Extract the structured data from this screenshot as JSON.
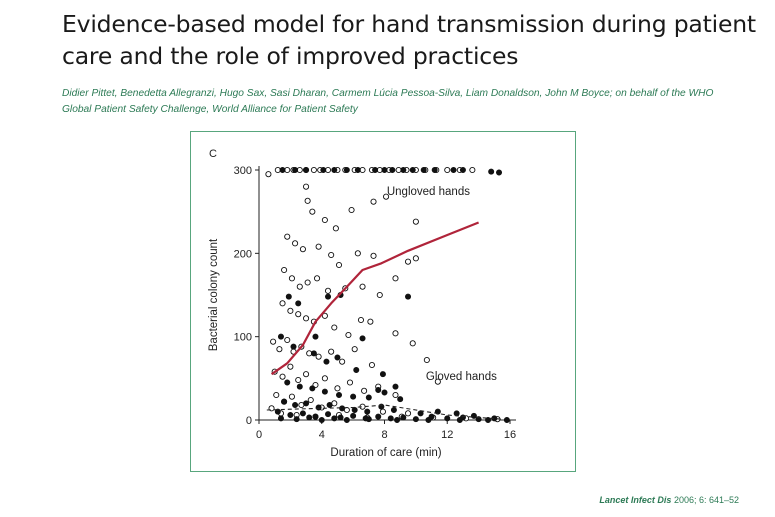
{
  "article": {
    "title": "Evidence-based model for hand transmission during patient care and the role of improved practices",
    "authors": "Didier Pittet, Benedetta Allegranzi, Hugo Sax, Sasi Dharan, Carmem Lúcia Pessoa-Silva, Liam Donaldson, John M Boyce; on behalf of the WHO Global Patient Safety Challenge, World Alliance for Patient Safety",
    "citation_journal": "Lancet Infect Dis",
    "citation_rest": " 2006; 6: 641–52"
  },
  "chart_data": {
    "type": "scatter",
    "panel_label": "C",
    "xlabel": "Duration of care (min)",
    "ylabel": "Bacterial colony count",
    "xlim": [
      0,
      16
    ],
    "ylim": [
      0,
      300
    ],
    "xticks": [
      0,
      4,
      8,
      12,
      16
    ],
    "yticks": [
      0,
      100,
      200,
      300
    ],
    "grid": false,
    "colors": {
      "ungloved_curve": "#b0243a",
      "points": "#111111"
    },
    "annotations": [
      {
        "text": "Ungloved hands",
        "x": 10.8,
        "y": 270
      },
      {
        "text": "Gloved hands",
        "x": 12.9,
        "y": 48
      }
    ],
    "series": [
      {
        "name": "Ungloved hands",
        "marker": "open-circle",
        "points": [
          [
            0.6,
            295
          ],
          [
            1.2,
            300
          ],
          [
            1.8,
            300
          ],
          [
            2.2,
            300
          ],
          [
            2.6,
            300
          ],
          [
            3.0,
            300
          ],
          [
            3.5,
            300
          ],
          [
            3.9,
            300
          ],
          [
            4.4,
            300
          ],
          [
            5.0,
            300
          ],
          [
            5.5,
            300
          ],
          [
            6.1,
            300
          ],
          [
            6.6,
            300
          ],
          [
            7.2,
            300
          ],
          [
            7.7,
            300
          ],
          [
            8.3,
            300
          ],
          [
            8.9,
            300
          ],
          [
            9.4,
            300
          ],
          [
            10.0,
            300
          ],
          [
            10.6,
            300
          ],
          [
            11.3,
            300
          ],
          [
            12.0,
            300
          ],
          [
            12.8,
            300
          ],
          [
            13.6,
            300
          ],
          [
            3.0,
            280
          ],
          [
            3.1,
            263
          ],
          [
            3.4,
            250
          ],
          [
            4.2,
            240
          ],
          [
            4.9,
            230
          ],
          [
            5.9,
            252
          ],
          [
            7.3,
            262
          ],
          [
            8.1,
            268
          ],
          [
            10.0,
            238
          ],
          [
            1.8,
            220
          ],
          [
            2.3,
            212
          ],
          [
            2.8,
            205
          ],
          [
            3.8,
            208
          ],
          [
            4.6,
            198
          ],
          [
            5.1,
            186
          ],
          [
            6.3,
            200
          ],
          [
            7.3,
            197
          ],
          [
            8.7,
            170
          ],
          [
            9.5,
            190
          ],
          [
            10.0,
            194
          ],
          [
            1.6,
            180
          ],
          [
            2.1,
            170
          ],
          [
            2.6,
            160
          ],
          [
            3.1,
            165
          ],
          [
            3.7,
            170
          ],
          [
            4.4,
            155
          ],
          [
            5.5,
            158
          ],
          [
            6.6,
            160
          ],
          [
            7.7,
            150
          ],
          [
            1.5,
            140
          ],
          [
            2.0,
            131
          ],
          [
            2.5,
            127
          ],
          [
            3.0,
            122
          ],
          [
            3.5,
            118
          ],
          [
            4.2,
            125
          ],
          [
            4.8,
            111
          ],
          [
            5.7,
            102
          ],
          [
            6.5,
            120
          ],
          [
            7.1,
            118
          ],
          [
            8.7,
            104
          ],
          [
            9.8,
            92
          ],
          [
            0.9,
            94
          ],
          [
            1.3,
            85
          ],
          [
            1.8,
            96
          ],
          [
            2.2,
            82
          ],
          [
            2.7,
            88
          ],
          [
            3.2,
            80
          ],
          [
            3.8,
            76
          ],
          [
            4.6,
            82
          ],
          [
            5.3,
            70
          ],
          [
            6.1,
            85
          ],
          [
            7.2,
            66
          ],
          [
            10.7,
            72
          ],
          [
            11.4,
            46
          ],
          [
            1.0,
            58
          ],
          [
            1.5,
            52
          ],
          [
            2.0,
            64
          ],
          [
            2.5,
            48
          ],
          [
            3.0,
            55
          ],
          [
            3.6,
            42
          ],
          [
            4.2,
            50
          ],
          [
            5.0,
            38
          ],
          [
            5.8,
            45
          ],
          [
            6.7,
            35
          ],
          [
            7.6,
            40
          ],
          [
            8.7,
            30
          ],
          [
            1.1,
            30
          ],
          [
            1.6,
            22
          ],
          [
            2.1,
            28
          ],
          [
            2.7,
            18
          ],
          [
            3.3,
            24
          ],
          [
            4.0,
            15
          ],
          [
            4.8,
            20
          ],
          [
            5.6,
            12
          ],
          [
            6.6,
            16
          ],
          [
            7.9,
            10
          ],
          [
            9.5,
            8
          ],
          [
            0.8,
            14
          ],
          [
            1.4,
            8
          ],
          [
            2.4,
            6
          ],
          [
            3.6,
            4
          ],
          [
            5.1,
            6
          ],
          [
            6.9,
            3
          ],
          [
            9.1,
            4
          ],
          [
            11.1,
            3
          ],
          [
            13.2,
            2
          ],
          [
            15.2,
            1
          ]
        ],
        "trend": [
          [
            0.8,
            55
          ],
          [
            1.8,
            68
          ],
          [
            2.8,
            90
          ],
          [
            3.6,
            118
          ],
          [
            4.6,
            140
          ],
          [
            5.6,
            160
          ],
          [
            6.6,
            180
          ],
          [
            7.8,
            188
          ],
          [
            9.5,
            203
          ],
          [
            12.0,
            222
          ],
          [
            14.0,
            237
          ]
        ]
      },
      {
        "name": "Gloved hands",
        "marker": "filled-circle",
        "points": [
          [
            1.5,
            300
          ],
          [
            2.3,
            300
          ],
          [
            3.0,
            300
          ],
          [
            4.1,
            300
          ],
          [
            4.8,
            300
          ],
          [
            5.6,
            300
          ],
          [
            6.3,
            300
          ],
          [
            7.4,
            300
          ],
          [
            8.0,
            300
          ],
          [
            8.5,
            300
          ],
          [
            9.2,
            300
          ],
          [
            9.8,
            300
          ],
          [
            10.5,
            300
          ],
          [
            11.2,
            300
          ],
          [
            12.4,
            300
          ],
          [
            13.0,
            300
          ],
          [
            14.8,
            298
          ],
          [
            15.3,
            297
          ],
          [
            1.9,
            148
          ],
          [
            2.5,
            140
          ],
          [
            4.4,
            148
          ],
          [
            5.2,
            150
          ],
          [
            9.5,
            148
          ],
          [
            3.6,
            100
          ],
          [
            6.6,
            98
          ],
          [
            1.4,
            100
          ],
          [
            2.2,
            88
          ],
          [
            3.5,
            80
          ],
          [
            4.3,
            70
          ],
          [
            5.0,
            75
          ],
          [
            6.2,
            60
          ],
          [
            7.9,
            55
          ],
          [
            8.7,
            40
          ],
          [
            1.8,
            45
          ],
          [
            2.6,
            40
          ],
          [
            3.4,
            38
          ],
          [
            4.2,
            34
          ],
          [
            5.1,
            30
          ],
          [
            6.0,
            28
          ],
          [
            7.0,
            27
          ],
          [
            7.6,
            36
          ],
          [
            8.0,
            33
          ],
          [
            9.0,
            25
          ],
          [
            1.6,
            22
          ],
          [
            2.3,
            18
          ],
          [
            3.0,
            20
          ],
          [
            3.8,
            15
          ],
          [
            4.5,
            18
          ],
          [
            5.3,
            14
          ],
          [
            6.1,
            12
          ],
          [
            6.9,
            10
          ],
          [
            7.8,
            16
          ],
          [
            8.6,
            12
          ],
          [
            10.3,
            8
          ],
          [
            11.4,
            10
          ],
          [
            12.6,
            8
          ],
          [
            13.7,
            5
          ],
          [
            1.2,
            10
          ],
          [
            2.0,
            6
          ],
          [
            2.8,
            8
          ],
          [
            3.6,
            4
          ],
          [
            4.4,
            7
          ],
          [
            5.2,
            3
          ],
          [
            6.0,
            5
          ],
          [
            6.8,
            2
          ],
          [
            7.6,
            4
          ],
          [
            8.4,
            2
          ],
          [
            9.2,
            3
          ],
          [
            10.0,
            1
          ],
          [
            11.0,
            4
          ],
          [
            12.0,
            2
          ],
          [
            13.0,
            3
          ],
          [
            14.0,
            1
          ],
          [
            15.0,
            2
          ],
          [
            1.4,
            2
          ],
          [
            2.4,
            1
          ],
          [
            3.2,
            3
          ],
          [
            4.0,
            0
          ],
          [
            4.8,
            2
          ],
          [
            5.6,
            0
          ],
          [
            7.0,
            1
          ],
          [
            8.8,
            0
          ],
          [
            10.8,
            0
          ],
          [
            12.8,
            0
          ],
          [
            14.6,
            0
          ],
          [
            15.8,
            0
          ]
        ],
        "trend": [
          [
            0.5,
            12
          ],
          [
            2.0,
            13
          ],
          [
            4.0,
            14
          ],
          [
            6.0,
            15
          ],
          [
            8.0,
            18
          ],
          [
            10.0,
            12
          ],
          [
            12.0,
            6
          ],
          [
            14.0,
            3
          ],
          [
            15.5,
            1
          ]
        ]
      }
    ]
  }
}
